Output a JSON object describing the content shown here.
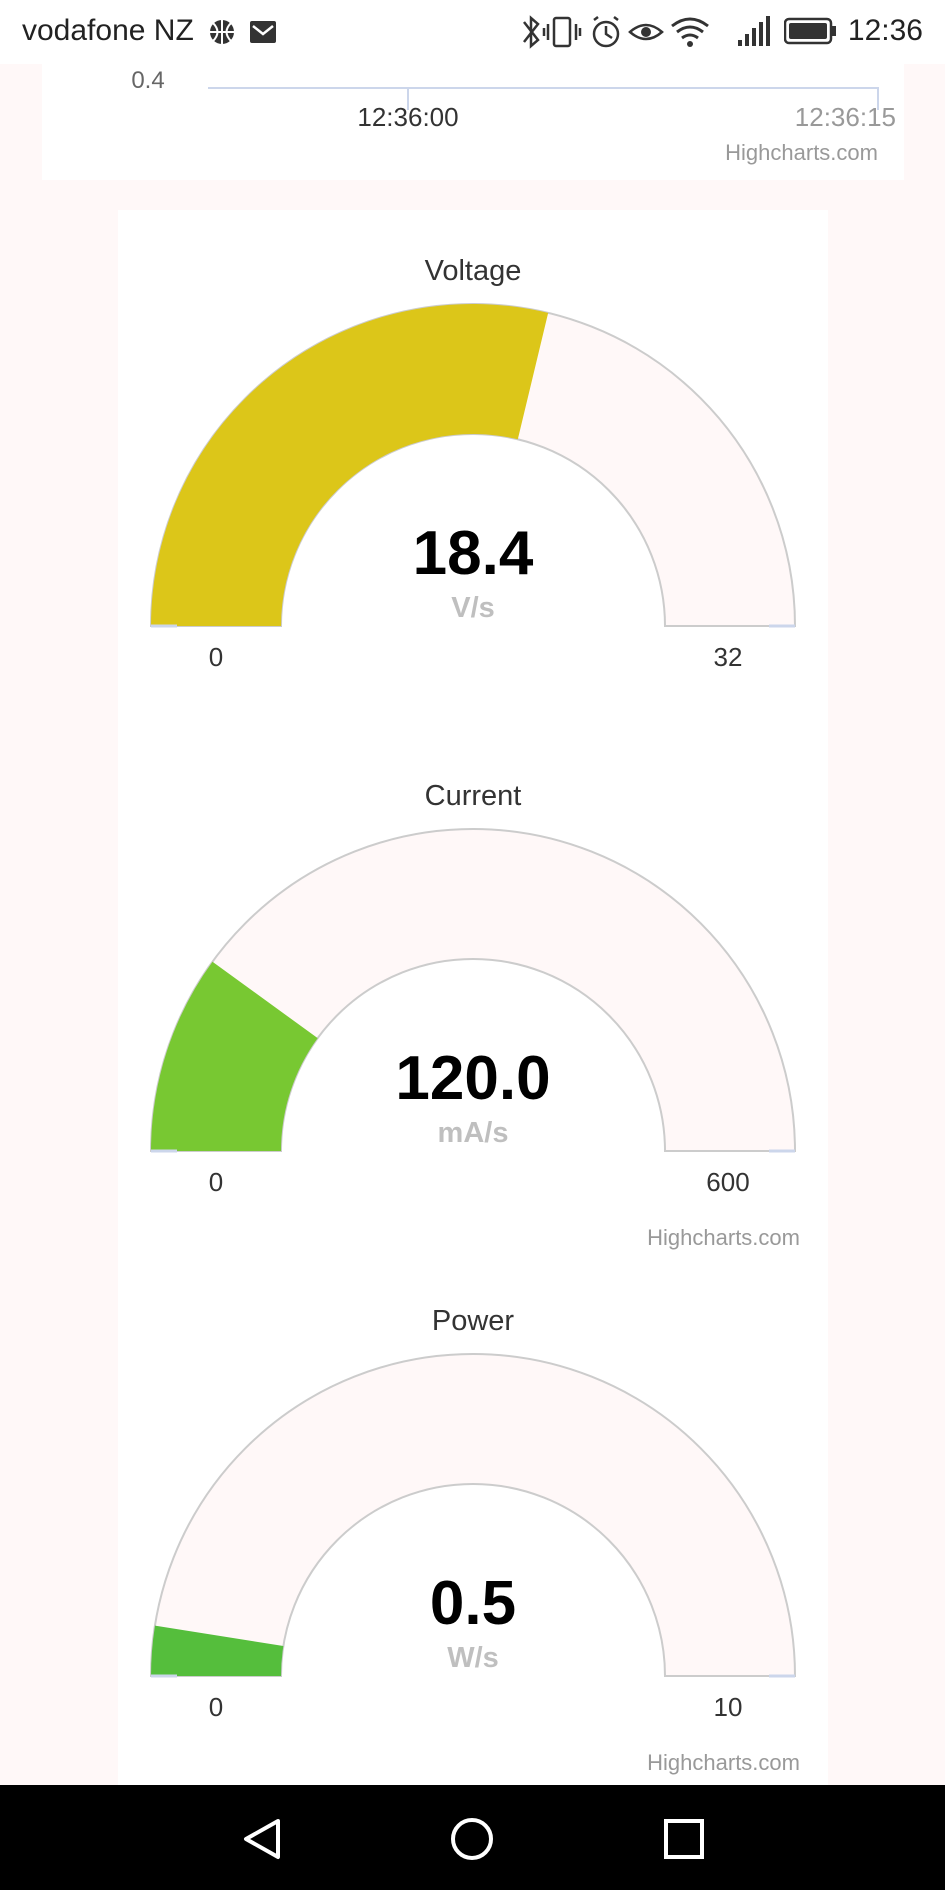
{
  "status_bar": {
    "carrier": "vodafone NZ",
    "time": "12:36",
    "icons": [
      "basketball-icon",
      "mail-icon",
      "bluetooth-icon",
      "vibrate-icon",
      "alarm-icon",
      "eye-icon",
      "wifi-icon",
      "signal-icon",
      "battery-icon"
    ]
  },
  "top_chart": {
    "y_tick": "0.4",
    "x_ticks": [
      "12:36:00",
      "12:36:15"
    ],
    "credit": "Highcharts.com"
  },
  "chart_data": [
    {
      "type": "gauge",
      "title": "Voltage",
      "value": 18.4,
      "value_label": "18.4",
      "unit": "V/s",
      "min": 0,
      "max": 32,
      "min_label": "0",
      "max_label": "32",
      "color": "#dcc619"
    },
    {
      "type": "gauge",
      "title": "Current",
      "value": 120.0,
      "value_label": "120.0",
      "unit": "mA/s",
      "min": 0,
      "max": 600,
      "min_label": "0",
      "max_label": "600",
      "color": "#78c832",
      "credit": "Highcharts.com"
    },
    {
      "type": "gauge",
      "title": "Power",
      "value": 0.5,
      "value_label": "0.5",
      "unit": "W/s",
      "min": 0,
      "max": 10,
      "min_label": "0",
      "max_label": "10",
      "color": "#55be3c",
      "credit": "Highcharts.com"
    }
  ],
  "colors": {
    "gauge_background": "#fff8f8",
    "gauge_border": "#cccccc",
    "value_text": "#000000",
    "unit_text": "#bfbfbf",
    "title_text": "#333333",
    "credit_text": "#999999",
    "axis_line": "#ccd6eb"
  }
}
